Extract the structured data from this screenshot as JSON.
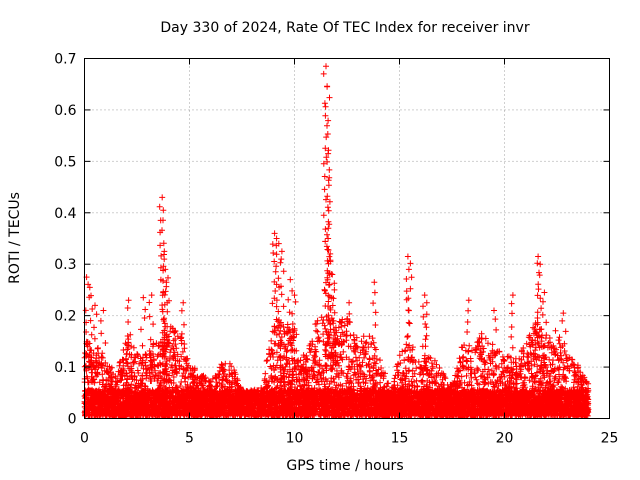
{
  "chart_data": {
    "type": "scatter",
    "title": "Day 330 of 2024, Rate Of TEC Index for receiver invr",
    "xlabel": "GPS time / hours",
    "ylabel": "ROTI / TECUs",
    "xlim": [
      0,
      25
    ],
    "ylim": [
      0,
      0.7
    ],
    "xticks": [
      "0",
      "5",
      "10",
      "15",
      "20",
      "25"
    ],
    "yticks": [
      "0",
      "0.1",
      "0.2",
      "0.3",
      "0.4",
      "0.5",
      "0.6",
      "0.7"
    ],
    "grid": true,
    "marker": "plus",
    "color": "#ff0000",
    "series": [
      {
        "name": "ROTI",
        "x_range": [
          0,
          24
        ],
        "baseline_max": 0.05,
        "envelope": [
          [
            0.0,
            0.15
          ],
          [
            0.5,
            0.14
          ],
          [
            1.0,
            0.12
          ],
          [
            1.5,
            0.08
          ],
          [
            2.0,
            0.16
          ],
          [
            2.5,
            0.13
          ],
          [
            3.0,
            0.12
          ],
          [
            3.5,
            0.16
          ],
          [
            4.0,
            0.18
          ],
          [
            4.5,
            0.17
          ],
          [
            5.0,
            0.1
          ],
          [
            5.5,
            0.09
          ],
          [
            6.0,
            0.07
          ],
          [
            6.5,
            0.1
          ],
          [
            7.0,
            0.12
          ],
          [
            7.5,
            0.05
          ],
          [
            8.0,
            0.05
          ],
          [
            8.5,
            0.06
          ],
          [
            9.0,
            0.2
          ],
          [
            9.5,
            0.18
          ],
          [
            10.0,
            0.17
          ],
          [
            10.5,
            0.12
          ],
          [
            11.0,
            0.18
          ],
          [
            11.5,
            0.2
          ],
          [
            12.0,
            0.18
          ],
          [
            12.5,
            0.2
          ],
          [
            13.0,
            0.15
          ],
          [
            13.5,
            0.17
          ],
          [
            14.0,
            0.12
          ],
          [
            14.5,
            0.06
          ],
          [
            15.0,
            0.12
          ],
          [
            15.5,
            0.15
          ],
          [
            16.0,
            0.1
          ],
          [
            16.5,
            0.12
          ],
          [
            17.0,
            0.09
          ],
          [
            17.5,
            0.06
          ],
          [
            18.0,
            0.14
          ],
          [
            18.5,
            0.13
          ],
          [
            19.0,
            0.17
          ],
          [
            19.5,
            0.14
          ],
          [
            20.0,
            0.12
          ],
          [
            20.5,
            0.11
          ],
          [
            21.0,
            0.14
          ],
          [
            21.5,
            0.2
          ],
          [
            22.0,
            0.15
          ],
          [
            22.5,
            0.17
          ],
          [
            23.0,
            0.12
          ],
          [
            23.5,
            0.1
          ],
          [
            24.0,
            0.07
          ]
        ],
        "peaks": [
          [
            0.1,
            0.275
          ],
          [
            0.25,
            0.255
          ],
          [
            0.5,
            0.22
          ],
          [
            0.9,
            0.21
          ],
          [
            2.1,
            0.23
          ],
          [
            2.8,
            0.235
          ],
          [
            3.2,
            0.24
          ],
          [
            3.7,
            0.43
          ],
          [
            3.75,
            0.405
          ],
          [
            3.8,
            0.325
          ],
          [
            3.85,
            0.29
          ],
          [
            3.9,
            0.265
          ],
          [
            4.7,
            0.225
          ],
          [
            9.05,
            0.36
          ],
          [
            9.15,
            0.35
          ],
          [
            9.25,
            0.34
          ],
          [
            9.4,
            0.325
          ],
          [
            9.8,
            0.27
          ],
          [
            10.0,
            0.24
          ],
          [
            11.1,
            0.19
          ],
          [
            11.5,
            0.685
          ],
          [
            11.55,
            0.645
          ],
          [
            11.6,
            0.515
          ],
          [
            11.6,
            0.35
          ],
          [
            11.7,
            0.32
          ],
          [
            11.8,
            0.28
          ],
          [
            11.9,
            0.25
          ],
          [
            12.6,
            0.225
          ],
          [
            13.8,
            0.265
          ],
          [
            15.4,
            0.315
          ],
          [
            15.45,
            0.29
          ],
          [
            16.2,
            0.24
          ],
          [
            16.3,
            0.225
          ],
          [
            18.3,
            0.23
          ],
          [
            19.5,
            0.21
          ],
          [
            20.4,
            0.24
          ],
          [
            21.6,
            0.315
          ],
          [
            21.7,
            0.3
          ],
          [
            21.9,
            0.245
          ],
          [
            22.8,
            0.205
          ],
          [
            23.6,
            0.09
          ],
          [
            23.8,
            0.08
          ]
        ]
      }
    ]
  }
}
